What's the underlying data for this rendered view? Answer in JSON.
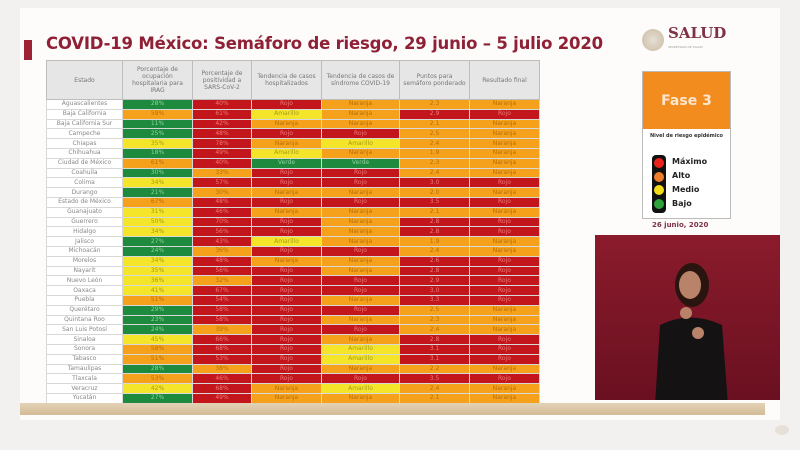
{
  "title": "COVID-19 México: Semáforo de riesgo, 29 junio – 5 julio 2020",
  "logo": {
    "name": "SALUD",
    "subtitle": "SECRETARÍA DE SALUD"
  },
  "phase": {
    "label": "Fase 3",
    "risk_title": "Nivel de riesgo epidémico",
    "levels": [
      "Máximo",
      "Alto",
      "Medio",
      "Bajo"
    ],
    "date": "26 junio, 2020"
  },
  "colors": {
    "G": "#1d8a3d",
    "Y": "#f4e52b",
    "O": "#f5a11b",
    "R": "#c3161c",
    "accent": "#8f2036"
  },
  "table": {
    "headers": [
      "Estado",
      "Porcentaje de ocupación hospitalaria para IRAG",
      "Porcentaje de positividad a SARS-CoV-2",
      "Tendencia de casos hospitalizados",
      "Tendencia de casos de síndrome COVID-19",
      "Puntos para semáforo ponderado",
      "Resultado final"
    ],
    "rows": [
      [
        "Aguascalientes",
        "28%",
        "G",
        "40%",
        "R",
        "Rojo",
        "Naranja",
        "2.3",
        "O",
        "Naranja"
      ],
      [
        "Baja California",
        "59%",
        "O",
        "61%",
        "R",
        "Amarillo",
        "Naranja",
        "2.9",
        "R",
        "Rojo"
      ],
      [
        "Baja California Sur",
        "11%",
        "G",
        "42%",
        "R",
        "Naranja",
        "Naranja",
        "2.1",
        "O",
        "Naranja"
      ],
      [
        "Campeche",
        "25%",
        "G",
        "48%",
        "R",
        "Rojo",
        "Rojo",
        "2.5",
        "O",
        "Naranja"
      ],
      [
        "Chiapas",
        "35%",
        "Y",
        "78%",
        "R",
        "Naranja",
        "Amarillo",
        "2.4",
        "O",
        "Naranja"
      ],
      [
        "Chihuahua",
        "18%",
        "G",
        "49%",
        "R",
        "Amarillo",
        "Naranja",
        "1.9",
        "O",
        "Naranja"
      ],
      [
        "Ciudad de México",
        "61%",
        "O",
        "40%",
        "R",
        "Verde",
        "Verde",
        "2.3",
        "O",
        "Naranja"
      ],
      [
        "Coahuila",
        "30%",
        "G",
        "33%",
        "O",
        "Rojo",
        "Rojo",
        "2.4",
        "O",
        "Naranja"
      ],
      [
        "Colima",
        "34%",
        "Y",
        "57%",
        "R",
        "Rojo",
        "Rojo",
        "3.0",
        "R",
        "Rojo"
      ],
      [
        "Durango",
        "21%",
        "G",
        "30%",
        "O",
        "Naranja",
        "Naranja",
        "2.0",
        "O",
        "Naranja"
      ],
      [
        "Estado de México",
        "67%",
        "O",
        "48%",
        "R",
        "Rojo",
        "Rojo",
        "3.5",
        "R",
        "Rojo"
      ],
      [
        "Guanajuato",
        "31%",
        "Y",
        "46%",
        "R",
        "Naranja",
        "Naranja",
        "2.1",
        "O",
        "Naranja"
      ],
      [
        "Guerrero",
        "50%",
        "Y",
        "70%",
        "R",
        "Rojo",
        "Naranja",
        "2.8",
        "R",
        "Rojo"
      ],
      [
        "Hidalgo",
        "34%",
        "Y",
        "56%",
        "R",
        "Rojo",
        "Naranja",
        "2.8",
        "R",
        "Rojo"
      ],
      [
        "Jalisco",
        "27%",
        "G",
        "43%",
        "R",
        "Amarillo",
        "Naranja",
        "1.9",
        "O",
        "Naranja"
      ],
      [
        "Michoacán",
        "24%",
        "G",
        "36%",
        "O",
        "Rojo",
        "Rojo",
        "2.4",
        "O",
        "Naranja"
      ],
      [
        "Morelos",
        "34%",
        "Y",
        "48%",
        "R",
        "Naranja",
        "Naranja",
        "2.6",
        "R",
        "Rojo"
      ],
      [
        "Nayarit",
        "35%",
        "Y",
        "56%",
        "R",
        "Rojo",
        "Naranja",
        "2.8",
        "R",
        "Rojo"
      ],
      [
        "Nuevo León",
        "36%",
        "Y",
        "32%",
        "O",
        "Rojo",
        "Rojo",
        "2.9",
        "R",
        "Rojo"
      ],
      [
        "Oaxaca",
        "41%",
        "Y",
        "67%",
        "R",
        "Rojo",
        "Rojo",
        "3.0",
        "R",
        "Rojo"
      ],
      [
        "Puebla",
        "51%",
        "O",
        "54%",
        "R",
        "Rojo",
        "Naranja",
        "3.3",
        "R",
        "Rojo"
      ],
      [
        "Querétaro",
        "29%",
        "G",
        "58%",
        "R",
        "Rojo",
        "Rojo",
        "2.5",
        "O",
        "Naranja"
      ],
      [
        "Quintana Roo",
        "23%",
        "G",
        "58%",
        "R",
        "Rojo",
        "Naranja",
        "2.3",
        "O",
        "Naranja"
      ],
      [
        "San Luis Potosí",
        "24%",
        "G",
        "39%",
        "O",
        "Rojo",
        "Rojo",
        "2.4",
        "O",
        "Naranja"
      ],
      [
        "Sinaloa",
        "45%",
        "Y",
        "66%",
        "R",
        "Rojo",
        "Naranja",
        "2.8",
        "R",
        "Rojo"
      ],
      [
        "Sonora",
        "58%",
        "O",
        "68%",
        "R",
        "Rojo",
        "Amarillo",
        "3.1",
        "R",
        "Rojo"
      ],
      [
        "Tabasco",
        "51%",
        "O",
        "53%",
        "R",
        "Rojo",
        "Amarillo",
        "3.1",
        "R",
        "Rojo"
      ],
      [
        "Tamaulipas",
        "28%",
        "G",
        "38%",
        "O",
        "Rojo",
        "Naranja",
        "2.2",
        "O",
        "Naranja"
      ],
      [
        "Tlaxcala",
        "53%",
        "O",
        "46%",
        "R",
        "Rojo",
        "Rojo",
        "3.5",
        "R",
        "Rojo"
      ],
      [
        "Veracruz",
        "42%",
        "Y",
        "68%",
        "R",
        "Naranja",
        "Amarillo",
        "2.4",
        "O",
        "Naranja"
      ],
      [
        "Yucatán",
        "27%",
        "G",
        "49%",
        "R",
        "Naranja",
        "Naranja",
        "2.1",
        "O",
        "Naranja"
      ],
      [
        "Zacatecas",
        "14%",
        "G",
        "30%",
        "O",
        "Rojo",
        "Rojo",
        "2.4",
        "O",
        "Naranja"
      ]
    ]
  }
}
